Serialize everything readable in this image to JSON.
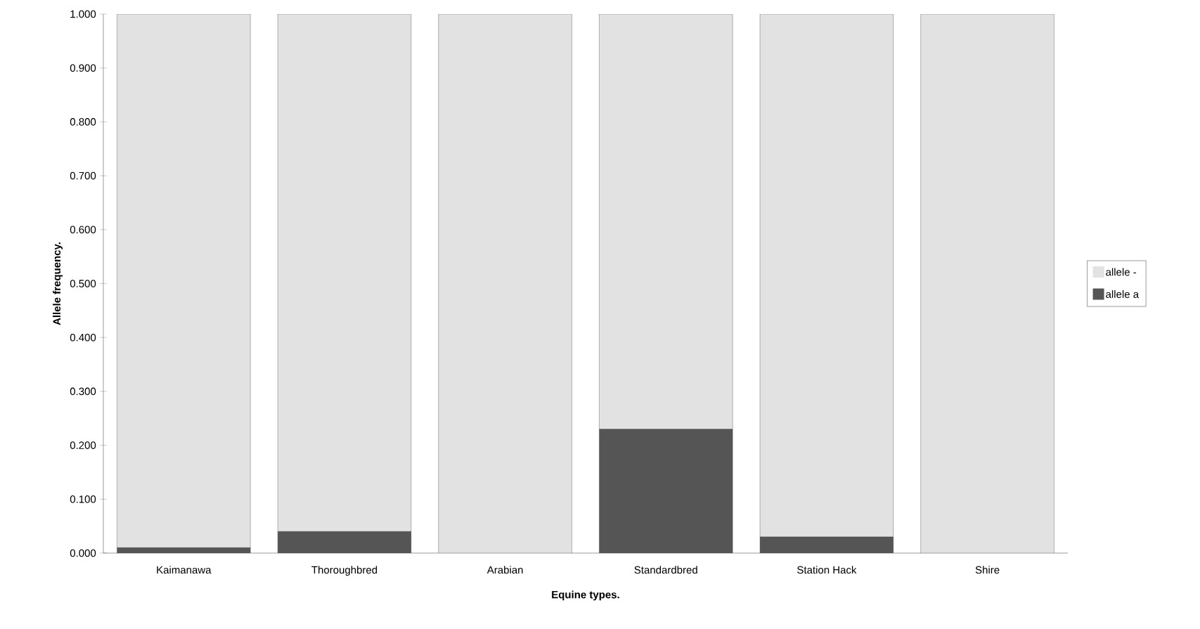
{
  "chart_data": {
    "type": "bar",
    "stacked": true,
    "xlabel": "Equine types.",
    "ylabel": "Allele frequency.",
    "categories": [
      "Kaimanawa",
      "Thoroughbred",
      "Arabian",
      "Standardbred",
      "Station Hack",
      "Shire"
    ],
    "series": [
      {
        "name": "allele a",
        "color": "#555555",
        "values": [
          0.01,
          0.04,
          0.0,
          0.23,
          0.03,
          0.0
        ]
      },
      {
        "name": "allele -",
        "color": "#e2e2e2",
        "values": [
          0.99,
          0.96,
          1.0,
          0.77,
          0.97,
          1.0
        ]
      }
    ],
    "ylim": [
      0,
      1
    ],
    "yticks": [
      {
        "value": 0,
        "label": "0.000"
      },
      {
        "value": 0.1,
        "label": "0.100"
      },
      {
        "value": 0.2,
        "label": "0.200"
      },
      {
        "value": 0.3,
        "label": "0.300"
      },
      {
        "value": 0.4,
        "label": "0.400"
      },
      {
        "value": 0.5,
        "label": "0.500"
      },
      {
        "value": 0.6,
        "label": "0.600"
      },
      {
        "value": 0.7,
        "label": "0.700"
      },
      {
        "value": 0.8,
        "label": "0.800"
      },
      {
        "value": 0.9,
        "label": "0.900"
      },
      {
        "value": 1,
        "label": "1.000"
      }
    ],
    "legend": "right",
    "grid": false
  }
}
